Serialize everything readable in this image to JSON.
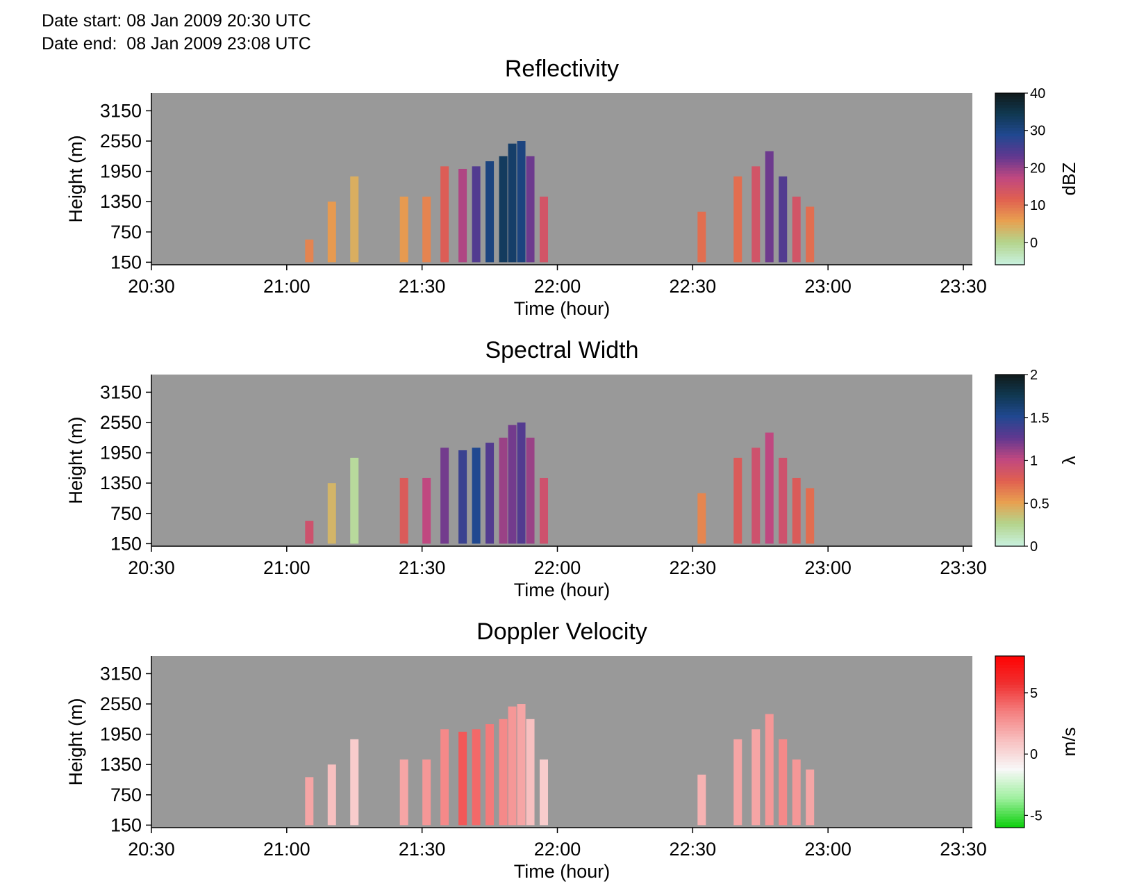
{
  "header": {
    "date_start": "Date start: 08 Jan 2009 20:30 UTC",
    "date_end": "Date end:  08 Jan 2009 23:08 UTC"
  },
  "background_color": "#999999",
  "chart_data": [
    {
      "type": "heatmap",
      "title": "Reflectivity",
      "xlabel": "Time (hour)",
      "ylabel": "Height (m)",
      "x_ticks": [
        "20:30",
        "21:00",
        "21:30",
        "22:00",
        "22:30",
        "23:00",
        "23:30"
      ],
      "y_ticks": [
        150,
        750,
        1350,
        1950,
        2550,
        3150
      ],
      "xlim": [
        "20:30",
        "23:32"
      ],
      "ylim": [
        100,
        3500
      ],
      "colorbar": {
        "label": "dBZ",
        "range": [
          -6,
          40
        ],
        "ticks": [
          "0",
          "10",
          "20",
          "30",
          "40"
        ],
        "colors": [
          "#c8f0dc",
          "#b4d48c",
          "#e8a050",
          "#e06050",
          "#c04880",
          "#603890",
          "#204890",
          "#103850",
          "#101818"
        ]
      },
      "cells": [
        [
          "21:05",
          150,
          600,
          8
        ],
        [
          "21:10",
          150,
          1350,
          6
        ],
        [
          "21:15",
          150,
          1850,
          4
        ],
        [
          "21:26",
          150,
          1450,
          6
        ],
        [
          "21:31",
          150,
          1450,
          8
        ],
        [
          "21:35",
          150,
          2050,
          12
        ],
        [
          "21:39",
          150,
          2000,
          18
        ],
        [
          "21:42",
          150,
          2050,
          24
        ],
        [
          "21:45",
          150,
          2150,
          30
        ],
        [
          "21:48",
          150,
          2250,
          33
        ],
        [
          "21:50",
          150,
          2500,
          32
        ],
        [
          "21:52",
          150,
          2550,
          30
        ],
        [
          "21:54",
          150,
          2250,
          22
        ],
        [
          "21:57",
          150,
          1450,
          14
        ],
        [
          "22:32",
          150,
          1150,
          10
        ],
        [
          "22:40",
          150,
          1850,
          10
        ],
        [
          "22:44",
          150,
          2050,
          14
        ],
        [
          "22:47",
          150,
          2350,
          22
        ],
        [
          "22:50",
          150,
          1850,
          24
        ],
        [
          "22:53",
          150,
          1450,
          14
        ],
        [
          "22:56",
          150,
          1250,
          10
        ]
      ]
    },
    {
      "type": "heatmap",
      "title": "Spectral Width",
      "xlabel": "Time (hour)",
      "ylabel": "Height (m)",
      "x_ticks": [
        "20:30",
        "21:00",
        "21:30",
        "22:00",
        "22:30",
        "23:00",
        "23:30"
      ],
      "y_ticks": [
        150,
        750,
        1350,
        1950,
        2550,
        3150
      ],
      "xlim": [
        "20:30",
        "23:32"
      ],
      "ylim": [
        100,
        3500
      ],
      "colorbar": {
        "label": "λ",
        "range": [
          0,
          2
        ],
        "ticks": [
          "0",
          "0.5",
          "1",
          "1.5",
          "2"
        ],
        "colors": [
          "#c8f0dc",
          "#b4d48c",
          "#e8a050",
          "#e06050",
          "#c04880",
          "#603890",
          "#204890",
          "#103850",
          "#101818"
        ]
      },
      "cells": [
        [
          "21:05",
          150,
          600,
          0.9
        ],
        [
          "21:10",
          150,
          1350,
          0.4
        ],
        [
          "21:15",
          150,
          1850,
          0.2
        ],
        [
          "21:26",
          150,
          1450,
          0.8
        ],
        [
          "21:31",
          150,
          1450,
          1.0
        ],
        [
          "21:35",
          150,
          2050,
          1.2
        ],
        [
          "21:39",
          150,
          2000,
          1.4
        ],
        [
          "21:42",
          150,
          2050,
          1.5
        ],
        [
          "21:45",
          150,
          2150,
          1.3
        ],
        [
          "21:48",
          150,
          2250,
          1.1
        ],
        [
          "21:50",
          150,
          2500,
          1.2
        ],
        [
          "21:52",
          150,
          2550,
          1.3
        ],
        [
          "21:54",
          150,
          2250,
          1.1
        ],
        [
          "21:57",
          150,
          1450,
          0.9
        ],
        [
          "22:32",
          150,
          1150,
          0.6
        ],
        [
          "22:40",
          150,
          1850,
          0.8
        ],
        [
          "22:44",
          150,
          2050,
          0.9
        ],
        [
          "22:47",
          150,
          2350,
          1.0
        ],
        [
          "22:50",
          150,
          1850,
          0.9
        ],
        [
          "22:53",
          150,
          1450,
          0.8
        ],
        [
          "22:56",
          150,
          1250,
          0.7
        ]
      ]
    },
    {
      "type": "heatmap",
      "title": "Doppler Velocity",
      "xlabel": "Time (hour)",
      "ylabel": "Height (m)",
      "x_ticks": [
        "20:30",
        "21:00",
        "21:30",
        "22:00",
        "22:30",
        "23:00",
        "23:30"
      ],
      "y_ticks": [
        150,
        750,
        1350,
        1950,
        2550,
        3150
      ],
      "xlim": [
        "20:30",
        "23:32"
      ],
      "ylim": [
        100,
        3500
      ],
      "colorbar": {
        "label": "m/s",
        "range": [
          -6,
          8
        ],
        "ticks": [
          "-5",
          "0",
          "5"
        ],
        "colors": [
          "#10d010",
          "#a0f0a0",
          "#f8f8f8",
          "#f8c0c0",
          "#f48080",
          "#f03030",
          "#ff0000"
        ]
      },
      "cells": [
        [
          "21:05",
          150,
          1100,
          2.0
        ],
        [
          "21:10",
          150,
          1350,
          1.0
        ],
        [
          "21:15",
          150,
          1850,
          0.5
        ],
        [
          "21:26",
          150,
          1450,
          2.0
        ],
        [
          "21:31",
          150,
          1450,
          2.5
        ],
        [
          "21:35",
          150,
          2050,
          3.0
        ],
        [
          "21:39",
          150,
          2000,
          4.5
        ],
        [
          "21:42",
          150,
          2050,
          4.0
        ],
        [
          "21:45",
          150,
          2150,
          3.5
        ],
        [
          "21:48",
          150,
          2250,
          3.0
        ],
        [
          "21:50",
          150,
          2500,
          2.5
        ],
        [
          "21:52",
          150,
          2550,
          2.0
        ],
        [
          "21:54",
          150,
          2250,
          1.0
        ],
        [
          "21:57",
          150,
          1450,
          0.5
        ],
        [
          "22:32",
          150,
          1150,
          1.5
        ],
        [
          "22:40",
          150,
          1850,
          2.0
        ],
        [
          "22:44",
          150,
          2050,
          2.0
        ],
        [
          "22:47",
          150,
          2350,
          2.5
        ],
        [
          "22:50",
          150,
          1850,
          3.0
        ],
        [
          "22:53",
          150,
          1450,
          2.5
        ],
        [
          "22:56",
          150,
          1250,
          2.0
        ]
      ]
    }
  ]
}
